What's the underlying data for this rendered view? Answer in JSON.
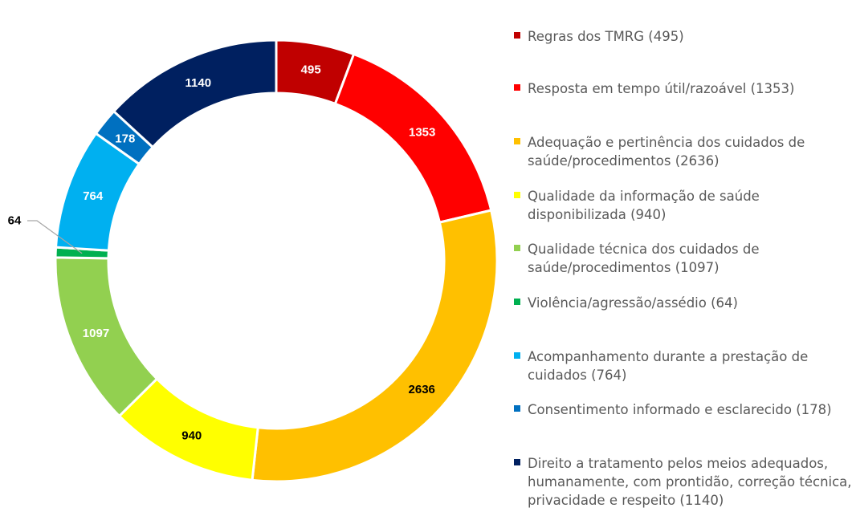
{
  "chart_data": {
    "type": "donut",
    "title": "",
    "series": [
      {
        "values": [
          495,
          1353,
          2636,
          940,
          1097,
          64,
          764,
          178,
          1140
        ]
      }
    ],
    "categories": [
      "Regras dos TMRG (495)",
      "Resposta em tempo útil/razoável (1353)",
      "Adequação e pertinência dos cuidados de saúde/procedimentos (2636)",
      "Qualidade da informação de saúde disponibilizada (940)",
      "Qualidade técnica dos cuidados de saúde/procedimentos (1097)",
      "Violência/agressão/assédio (64)",
      "Acompanhamento durante a prestação de cuidados (764)",
      "Consentimento informado e esclarecido (178)",
      "Direito a tratamento pelos meios adequados, humanamente, com prontidão, correção técnica, privacidade e respeito (1140)"
    ],
    "values": [
      495,
      1353,
      2636,
      940,
      1097,
      64,
      764,
      178,
      1140
    ],
    "data_labels": [
      "495",
      "1353",
      "2636",
      "940",
      "1097",
      "64",
      "764",
      "178",
      "1140"
    ],
    "colors": [
      "#C00000",
      "#FF0000",
      "#FFC000",
      "#FFFF00",
      "#92D050",
      "#00B050",
      "#00B0F0",
      "#0070C0",
      "#002060"
    ],
    "label_colors": [
      "#FFFFFF",
      "#FFFFFF",
      "#000000",
      "#000000",
      "#FFFFFF",
      "#000000",
      "#FFFFFF",
      "#FFFFFF",
      "#FFFFFF"
    ],
    "legend_position": "right",
    "start_angle": "top, clockwise"
  }
}
